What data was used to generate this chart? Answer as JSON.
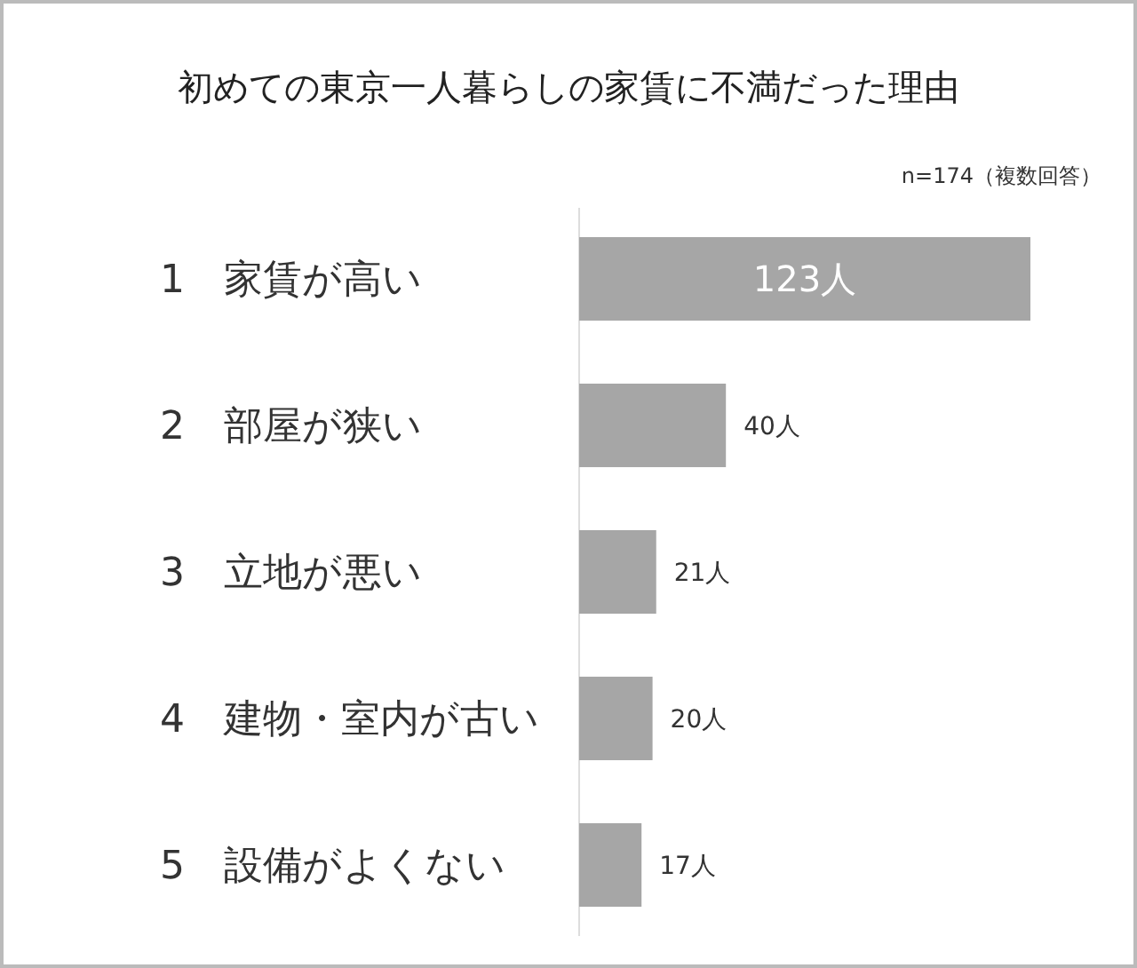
{
  "chart_data": {
    "type": "bar",
    "orientation": "horizontal",
    "title": "初めての東京一人暮らしの家賃に不満だった理由",
    "subtitle": "n=174（複数回答）",
    "categories": [
      "1　家賃が高い",
      "2　部屋が狭い",
      "3　立地が悪い",
      "4　建物・室内が古い",
      "5　設備がよくない"
    ],
    "values": [
      123,
      40,
      21,
      20,
      17
    ],
    "color": "#a6a6a6",
    "value_labels": [
      "123人",
      "40人",
      "21人",
      "20人",
      "17人"
    ]
  }
}
